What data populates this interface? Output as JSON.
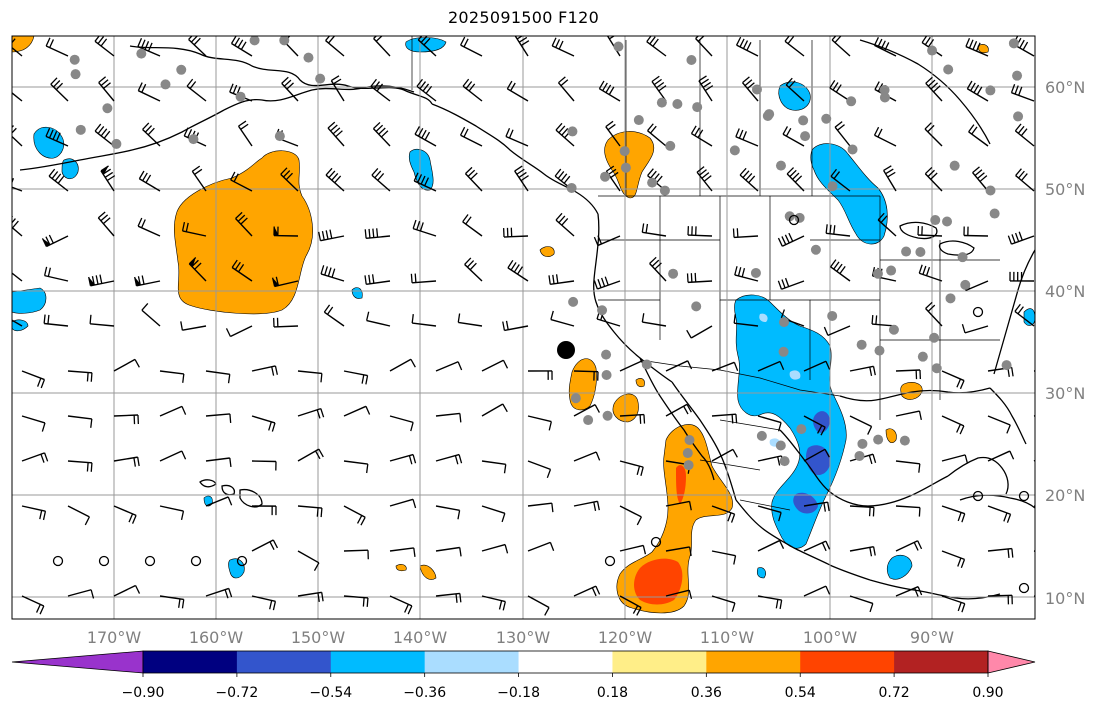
{
  "title": "2025091500 F120",
  "lat_labels": [
    "60°N",
    "50°N",
    "40°N",
    "30°N",
    "20°N",
    "10°N"
  ],
  "lon_labels": [
    "170°W",
    "160°W",
    "150°W",
    "140°W",
    "130°W",
    "120°W",
    "110°W",
    "100°W",
    "90°W"
  ],
  "colorbar": {
    "ticks": [
      "−0.90",
      "−0.72",
      "−0.54",
      "−0.36",
      "−0.18",
      "0.18",
      "0.36",
      "0.54",
      "0.72",
      "0.90"
    ],
    "colors": [
      "#9933cc",
      "#000080",
      "#3355cc",
      "#00bbff",
      "#aaddff",
      "#ffffff",
      "#ffee88",
      "#ffa500",
      "#ff4400",
      "#b22222",
      "#ff88aa"
    ]
  },
  "map": {
    "extent": {
      "lon_min": -179.5,
      "lon_max": -79.5,
      "lat_min": 8,
      "lat_max": 65
    },
    "grid": true,
    "marker": {
      "name": "location",
      "lon": -126,
      "lat": 34
    }
  }
}
